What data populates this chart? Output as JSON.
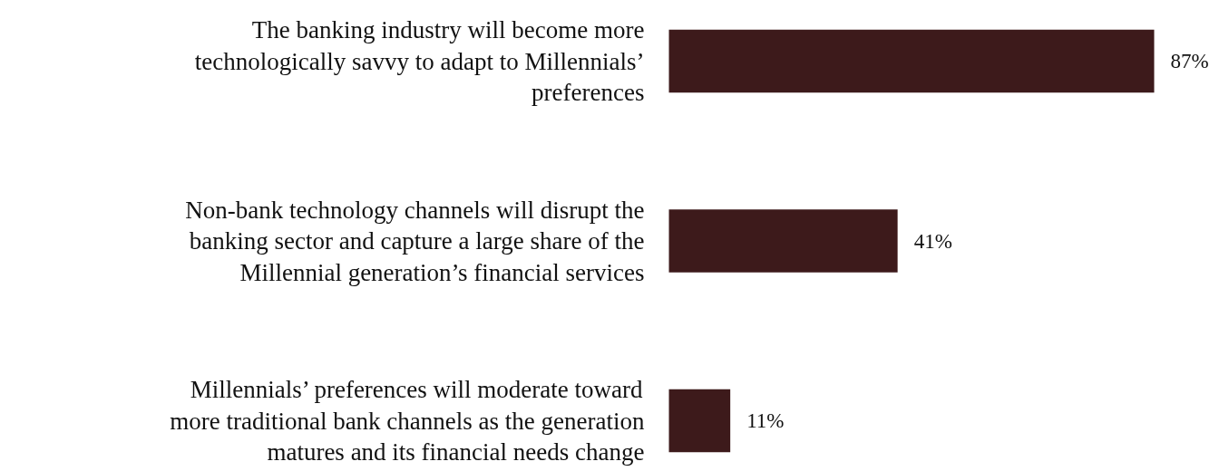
{
  "chart_data": {
    "type": "bar",
    "orientation": "horizontal",
    "categories": [
      "The banking industry will become more technologically savvy to adapt to Millennials’ preferences",
      "Non-bank technology channels will disrupt the banking sector and capture a large share of the Millennial generation’s financial services",
      "Millennials’ preferences will moderate toward more traditional bank channels as the generation matures and its financial needs change"
    ],
    "values": [
      87,
      41,
      11
    ],
    "value_labels": [
      "87%",
      "41%",
      "11%"
    ],
    "color": "#3d1a1b",
    "grid": false
  }
}
